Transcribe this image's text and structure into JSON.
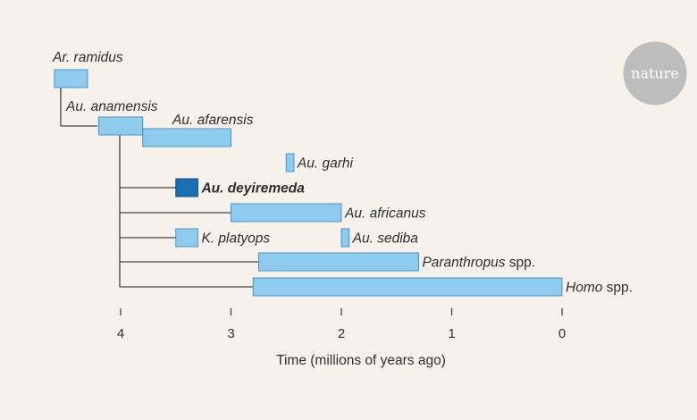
{
  "axis": {
    "title": "Time (millions of years ago)",
    "min": 0,
    "max": 4.6,
    "reversed": true,
    "ticks": [
      4,
      3,
      2,
      1,
      0
    ]
  },
  "colors": {
    "bar": "#8ecbee",
    "bar_stroke": "#4f93c4",
    "highlight": "#1a6fb0",
    "highlight_stroke": "#0f4f85",
    "line": "#444444",
    "logo_bg": "#bdbdbd"
  },
  "logo": {
    "text": "nature"
  },
  "taxa": [
    {
      "id": "ar-ramidus",
      "genus": "Ar.",
      "species": "ramidus",
      "suffix": "",
      "start": 4.6,
      "end": 4.3,
      "highlight": false
    },
    {
      "id": "au-anamensis",
      "genus": "Au.",
      "species": "anamensis",
      "suffix": "",
      "start": 4.2,
      "end": 3.8,
      "highlight": false
    },
    {
      "id": "au-afarensis",
      "genus": "Au.",
      "species": "afarensis",
      "suffix": "",
      "start": 3.8,
      "end": 3.0,
      "highlight": false
    },
    {
      "id": "au-garhi",
      "genus": "Au.",
      "species": "garhi",
      "suffix": "",
      "start": 2.5,
      "end": 2.43,
      "highlight": false
    },
    {
      "id": "au-deyiremeda",
      "genus": "Au.",
      "species": "deyiremeda",
      "suffix": "",
      "start": 3.5,
      "end": 3.3,
      "highlight": true
    },
    {
      "id": "au-africanus",
      "genus": "Au.",
      "species": "africanus",
      "suffix": "",
      "start": 3.0,
      "end": 2.0,
      "highlight": false
    },
    {
      "id": "k-platyops",
      "genus": "K.",
      "species": "platyops",
      "suffix": "",
      "start": 3.5,
      "end": 3.3,
      "highlight": false
    },
    {
      "id": "au-sediba",
      "genus": "Au.",
      "species": "sediba",
      "suffix": "",
      "start": 2.0,
      "end": 1.93,
      "highlight": false
    },
    {
      "id": "paranthropus",
      "genus": "",
      "species": "Paranthropus",
      "suffix": " spp.",
      "start": 2.75,
      "end": 1.3,
      "highlight": false
    },
    {
      "id": "homo",
      "genus": "",
      "species": "Homo",
      "suffix": " spp.",
      "start": 2.8,
      "end": 0.0,
      "highlight": false
    }
  ]
}
